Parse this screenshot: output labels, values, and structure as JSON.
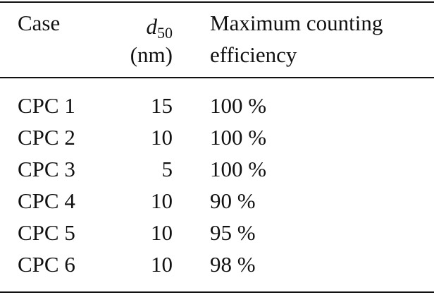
{
  "table": {
    "headers": {
      "case": "Case",
      "d50_symbol": "d",
      "d50_subscript": "50",
      "d50_unit": "(nm)",
      "efficiency_line1": "Maximum counting",
      "efficiency_line2": "efficiency"
    },
    "rows": [
      {
        "case": "CPC 1",
        "d50": "15",
        "efficiency": "100 %"
      },
      {
        "case": "CPC 2",
        "d50": "10",
        "efficiency": "100 %"
      },
      {
        "case": "CPC 3",
        "d50": "5",
        "efficiency": "100 %"
      },
      {
        "case": "CPC 4",
        "d50": "10",
        "efficiency": "90 %"
      },
      {
        "case": "CPC 5",
        "d50": "10",
        "efficiency": "95 %"
      },
      {
        "case": "CPC 6",
        "d50": "10",
        "efficiency": "98 %"
      }
    ]
  }
}
